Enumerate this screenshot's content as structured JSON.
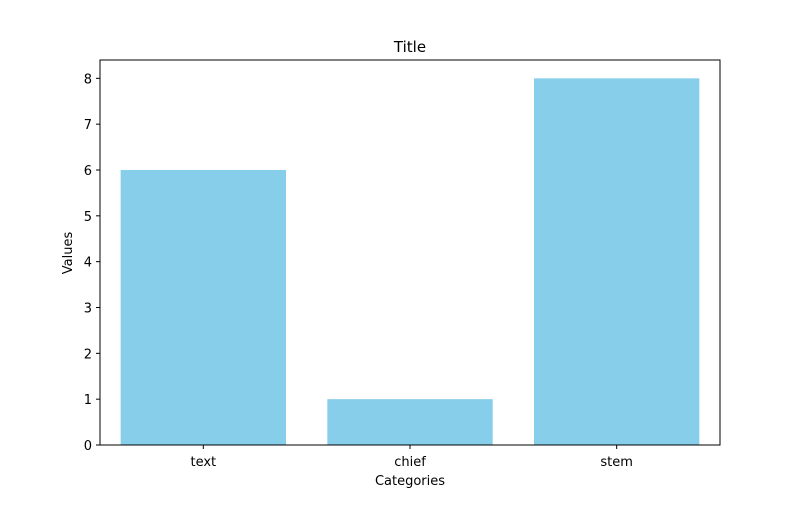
{
  "chart_data": {
    "type": "bar",
    "title": "Title",
    "xlabel": "Categories",
    "ylabel": "Values",
    "categories": [
      "text",
      "chief",
      "stem"
    ],
    "values": [
      6,
      1,
      8
    ],
    "ylim": [
      0,
      8.4
    ],
    "yticks": [
      0,
      1,
      2,
      3,
      4,
      5,
      6,
      7,
      8
    ],
    "bar_color": "#87ceeb",
    "grid": false,
    "legend": "none"
  }
}
